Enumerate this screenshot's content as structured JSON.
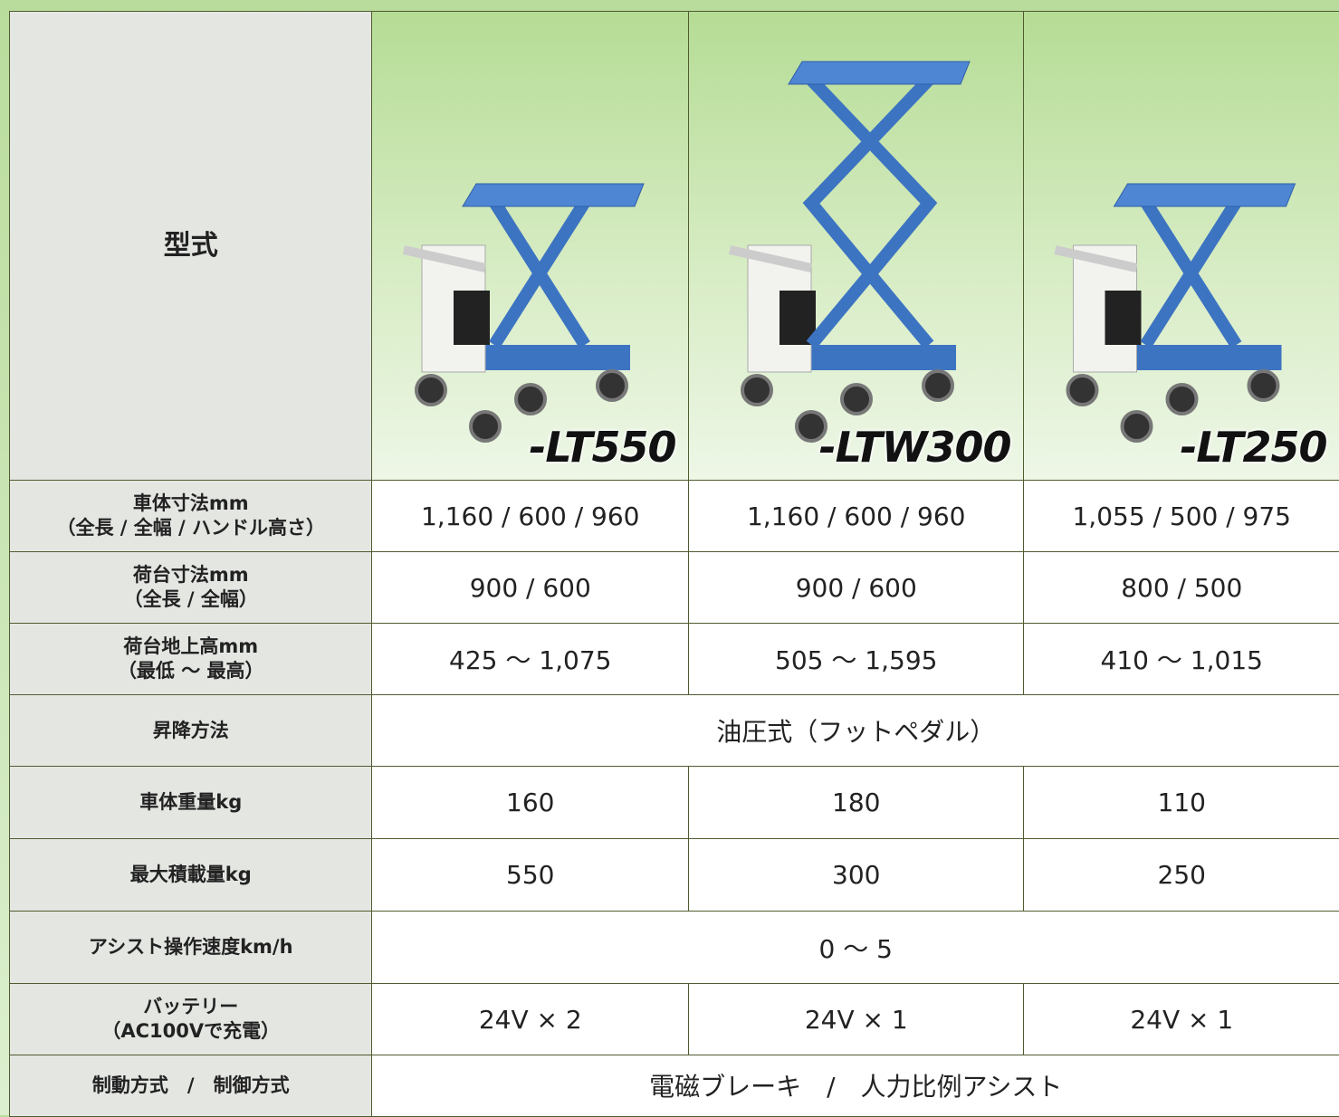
{
  "header": {
    "label": "型式",
    "models": [
      "-LT550",
      "-LTW300",
      "-LT250"
    ]
  },
  "rows": [
    {
      "label": [
        "車体寸法mm",
        "（全長 / 全幅 / ハンドル高さ）"
      ],
      "values": [
        "1,160 / 600 / 960",
        "1,160 / 600 / 960",
        "1,055 / 500 / 975"
      ]
    },
    {
      "label": [
        "荷台寸法mm",
        "（全長 / 全幅）"
      ],
      "values": [
        "900 / 600",
        "900 / 600",
        "800 / 500"
      ]
    },
    {
      "label": [
        "荷台地上高mm",
        "（最低 ～ 最高）"
      ],
      "values": [
        "425 ～ 1,075",
        "505 ～ 1,595",
        "410 ～ 1,015"
      ]
    },
    {
      "label": [
        "昇降方法"
      ],
      "values": [
        "油圧式（フットペダル）"
      ]
    },
    {
      "label": [
        "車体重量kg"
      ],
      "values": [
        "160",
        "180",
        "110"
      ]
    },
    {
      "label": [
        "最大積載量kg"
      ],
      "values": [
        "550",
        "300",
        "250"
      ]
    },
    {
      "label": [
        "アシスト操作速度km/h"
      ],
      "values": [
        "0 ～ 5"
      ]
    },
    {
      "label": [
        "バッテリー",
        "（AC100Vで充電）"
      ],
      "values": [
        "24V × 2",
        "24V × 1",
        "24V × 1"
      ]
    },
    {
      "label": [
        "制動方式　/　制御方式"
      ],
      "values": [
        "電磁ブレーキ　/　人力比例アシスト"
      ]
    }
  ]
}
